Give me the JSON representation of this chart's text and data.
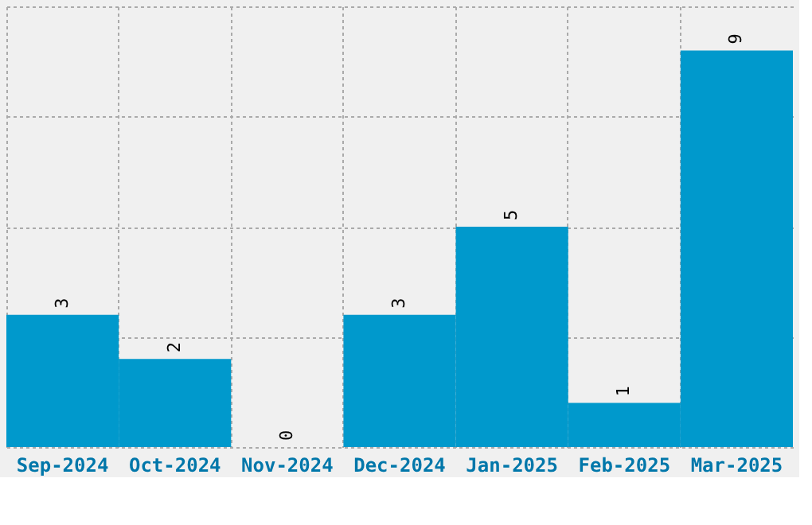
{
  "chart_data": {
    "type": "bar",
    "categories": [
      "Sep-2024",
      "Oct-2024",
      "Nov-2024",
      "Dec-2024",
      "Jan-2025",
      "Feb-2025",
      "Mar-2025"
    ],
    "values": [
      3,
      2,
      0,
      3,
      5,
      1,
      9
    ],
    "color": "#0099cc",
    "ylim": [
      0,
      10
    ],
    "yticks": [
      {
        "value": 0,
        "label": null
      },
      {
        "value": 2.5,
        "label": null
      },
      {
        "value": 5,
        "label": null
      },
      {
        "value": 7.5,
        "label": null
      },
      {
        "value": 10,
        "label": null
      }
    ],
    "tick_labels": "x",
    "grid": true,
    "data_labels": true
  }
}
